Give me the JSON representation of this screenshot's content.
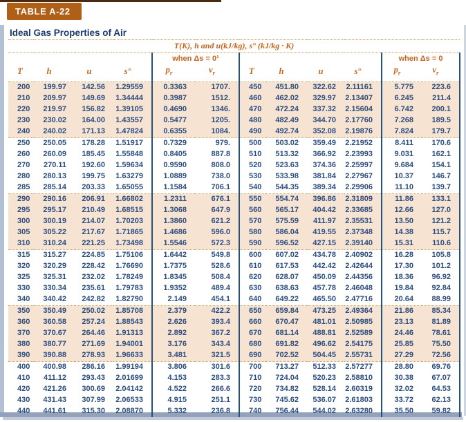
{
  "header": {
    "tab_label": "TABLE A-22",
    "title": "Ideal Gas Properties of Air",
    "units_line": "T(K), h and u(kJ/kg), s° (kJ/kg · K)",
    "left_span": "when Δs = 0¹",
    "right_span": "when Δs = 0"
  },
  "columns": [
    {
      "label": "T",
      "sub": ""
    },
    {
      "label": "h",
      "sub": ""
    },
    {
      "label": "u",
      "sub": ""
    },
    {
      "label": "s°",
      "sub": ""
    },
    {
      "label": "p",
      "sub": "r"
    },
    {
      "label": "v",
      "sub": "r"
    }
  ],
  "colors": {
    "tab_background": "#b05f16",
    "title_text": "#1b3a6b",
    "header_text": "#c8651b",
    "data_text": "#2a4d80",
    "shaded_band": "#f6e3d2",
    "vertical_rule": "#24527f",
    "dotted_rule": "#d79a55",
    "frame": "#93a2ba"
  },
  "table": {
    "groups": [
      {
        "shaded": true,
        "rows": [
          [
            "200",
            "199.97",
            "142.56",
            "1.29559",
            "0.3363",
            "1707.",
            "450",
            "451.80",
            "322.62",
            "2.11161",
            "5.775",
            "223.6"
          ],
          [
            "210",
            "209.97",
            "149.69",
            "1.34444",
            "0.3987",
            "1512.",
            "460",
            "462.02",
            "329.97",
            "2.13407",
            "6.245",
            "211.4"
          ],
          [
            "220",
            "219.97",
            "156.82",
            "1.39105",
            "0.4690",
            "1346.",
            "470",
            "472.24",
            "337.32",
            "2.15604",
            "6.742",
            "200.1"
          ],
          [
            "230",
            "230.02",
            "164.00",
            "1.43557",
            "0.5477",
            "1205.",
            "480",
            "482.49",
            "344.70",
            "2.17760",
            "7.268",
            "189.5"
          ],
          [
            "240",
            "240.02",
            "171.13",
            "1.47824",
            "0.6355",
            "1084.",
            "490",
            "492.74",
            "352.08",
            "2.19876",
            "7.824",
            "179.7"
          ]
        ]
      },
      {
        "shaded": false,
        "rows": [
          [
            "250",
            "250.05",
            "178.28",
            "1.51917",
            "0.7329",
            "979.",
            "500",
            "503.02",
            "359.49",
            "2.21952",
            "8.411",
            "170.6"
          ],
          [
            "260",
            "260.09",
            "185.45",
            "1.55848",
            "0.8405",
            "887.8",
            "510",
            "513.32",
            "366.92",
            "2.23993",
            "9.031",
            "162.1"
          ],
          [
            "270",
            "270.11",
            "192.60",
            "1.59634",
            "0.9590",
            "808.0",
            "520",
            "523.63",
            "374.36",
            "2.25997",
            "9.684",
            "154.1"
          ],
          [
            "280",
            "280.13",
            "199.75",
            "1.63279",
            "1.0889",
            "738.0",
            "530",
            "533.98",
            "381.84",
            "2.27967",
            "10.37",
            "146.7"
          ],
          [
            "285",
            "285.14",
            "203.33",
            "1.65055",
            "1.1584",
            "706.1",
            "540",
            "544.35",
            "389.34",
            "2.29906",
            "11.10",
            "139.7"
          ]
        ]
      },
      {
        "shaded": true,
        "rows": [
          [
            "290",
            "290.16",
            "206.91",
            "1.66802",
            "1.2311",
            "676.1",
            "550",
            "554.74",
            "396.86",
            "2.31809",
            "11.86",
            "133.1"
          ],
          [
            "295",
            "295.17",
            "210.49",
            "1.68515",
            "1.3068",
            "647.9",
            "560",
            "565.17",
            "404.42",
            "2.33685",
            "12.66",
            "127.0"
          ],
          [
            "300",
            "300.19",
            "214.07",
            "1.70203",
            "1.3860",
            "621.2",
            "570",
            "575.59",
            "411.97",
            "2.35531",
            "13.50",
            "121.2"
          ],
          [
            "305",
            "305.22",
            "217.67",
            "1.71865",
            "1.4686",
            "596.0",
            "580",
            "586.04",
            "419.55",
            "2.37348",
            "14.38",
            "115.7"
          ],
          [
            "310",
            "310.24",
            "221.25",
            "1.73498",
            "1.5546",
            "572.3",
            "590",
            "596.52",
            "427.15",
            "2.39140",
            "15.31",
            "110.6"
          ]
        ]
      },
      {
        "shaded": false,
        "rows": [
          [
            "315",
            "315.27",
            "224.85",
            "1.75106",
            "1.6442",
            "549.8",
            "600",
            "607.02",
            "434.78",
            "2.40902",
            "16.28",
            "105.8"
          ],
          [
            "320",
            "320.29",
            "228.42",
            "1.76690",
            "1.7375",
            "528.6",
            "610",
            "617.53",
            "442.42",
            "2.42644",
            "17.30",
            "101.2"
          ],
          [
            "325",
            "325.31",
            "232.02",
            "1.78249",
            "1.8345",
            "508.4",
            "620",
            "628.07",
            "450.09",
            "2.44356",
            "18.36",
            "96.92"
          ],
          [
            "330",
            "330.34",
            "235.61",
            "1.79783",
            "1.9352",
            "489.4",
            "630",
            "638.63",
            "457.78",
            "2.46048",
            "19.84",
            "92.84"
          ],
          [
            "340",
            "340.42",
            "242.82",
            "1.82790",
            "2.149",
            "454.1",
            "640",
            "649.22",
            "465.50",
            "2.47716",
            "20.64",
            "88.99"
          ]
        ]
      },
      {
        "shaded": true,
        "rows": [
          [
            "350",
            "350.49",
            "250.02",
            "1.85708",
            "2.379",
            "422.2",
            "650",
            "659.84",
            "473.25",
            "2.49364",
            "21.86",
            "85.34"
          ],
          [
            "360",
            "360.58",
            "257.24",
            "1.88543",
            "2.626",
            "393.4",
            "660",
            "670.47",
            "481.01",
            "2.50985",
            "23.13",
            "81.89"
          ],
          [
            "370",
            "370.67",
            "264.46",
            "1.91313",
            "2.892",
            "367.2",
            "670",
            "681.14",
            "488.81",
            "2.52589",
            "24.46",
            "78.61"
          ],
          [
            "380",
            "380.77",
            "271.69",
            "1.94001",
            "3.176",
            "343.4",
            "680",
            "691.82",
            "496.62",
            "2.54175",
            "25.85",
            "75.50"
          ],
          [
            "390",
            "390.88",
            "278.93",
            "1.96633",
            "3.481",
            "321.5",
            "690",
            "702.52",
            "504.45",
            "2.55731",
            "27.29",
            "72.56"
          ]
        ]
      },
      {
        "shaded": false,
        "rows": [
          [
            "400",
            "400.98",
            "286.16",
            "1.99194",
            "3.806",
            "301.6",
            "700",
            "713.27",
            "512.33",
            "2.57277",
            "28.80",
            "69.76"
          ],
          [
            "410",
            "411.12",
            "293.43",
            "2.01699",
            "4.153",
            "283.3",
            "710",
            "724.04",
            "520.23",
            "2.58810",
            "30.38",
            "67.07"
          ],
          [
            "420",
            "421.26",
            "300.69",
            "2.04142",
            "4.522",
            "266.6",
            "720",
            "734.82",
            "528.14",
            "2.60319",
            "32.02",
            "64.53"
          ],
          [
            "430",
            "431.43",
            "307.99",
            "2.06533",
            "4.915",
            "251.1",
            "730",
            "745.62",
            "536.07",
            "2.61803",
            "33.72",
            "62.13"
          ],
          [
            "440",
            "441.61",
            "315.30",
            "2.08870",
            "5.332",
            "236.8",
            "740",
            "756.44",
            "544.02",
            "2.63280",
            "35.50",
            "59.82"
          ]
        ]
      }
    ]
  }
}
